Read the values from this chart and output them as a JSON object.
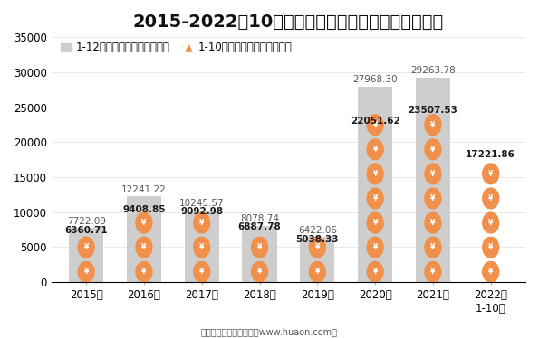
{
  "title": "2015-2022年10月大连商品交易所豆一期货成交金额",
  "years": [
    "2015年",
    "2016年",
    "2017年",
    "2018年",
    "2019年",
    "2020年",
    "2021年",
    "2022年\n1-10月"
  ],
  "annual_values": [
    7722.09,
    12241.22,
    10245.57,
    8078.74,
    6422.06,
    27968.3,
    29263.78,
    null
  ],
  "monthly_values": [
    6360.71,
    9408.85,
    9092.98,
    6887.78,
    5038.33,
    22051.62,
    23507.53,
    17221.86
  ],
  "bar_color_annual": "#cecece",
  "bar_color_monthly": "#f0904a",
  "legend_label_annual": "1-12月期货成交金额（亿元）",
  "legend_label_monthly": "1-10月期货成交金额（亿元）",
  "ylabel_max": 35000,
  "yticks": [
    0,
    5000,
    10000,
    15000,
    20000,
    25000,
    30000,
    35000
  ],
  "footer": "制图：华经产业研究院（www.huaon.com）",
  "bg_color": "#ffffff",
  "annual_label_color": "#555555",
  "monthly_label_color": "#1a1a1a",
  "title_fontsize": 14,
  "legend_fontsize": 8.5,
  "tick_fontsize": 8.5,
  "label_fontsize": 7.5
}
